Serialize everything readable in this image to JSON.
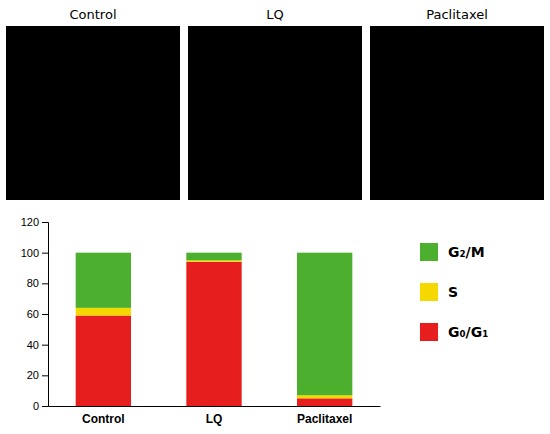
{
  "chart_data": {
    "type": "bar",
    "stacked": true,
    "annotations": [
      "Control",
      "LQ",
      "Paclitaxel"
    ],
    "categories": [
      "Control",
      "LQ",
      "Paclitaxel"
    ],
    "series": [
      {
        "name": "G₀/G₁",
        "color": "#e61e1e",
        "values": [
          59,
          94,
          5
        ]
      },
      {
        "name": "S",
        "color": "#f5d800",
        "values": [
          5,
          1,
          2
        ]
      },
      {
        "name": "G₂/M",
        "color": "#4caf2e",
        "values": [
          36,
          5,
          93
        ]
      }
    ],
    "ylim": [
      0,
      120
    ],
    "yticks": [
      0,
      20,
      40,
      60,
      80,
      100,
      120
    ],
    "legend": "right",
    "grid": false
  }
}
